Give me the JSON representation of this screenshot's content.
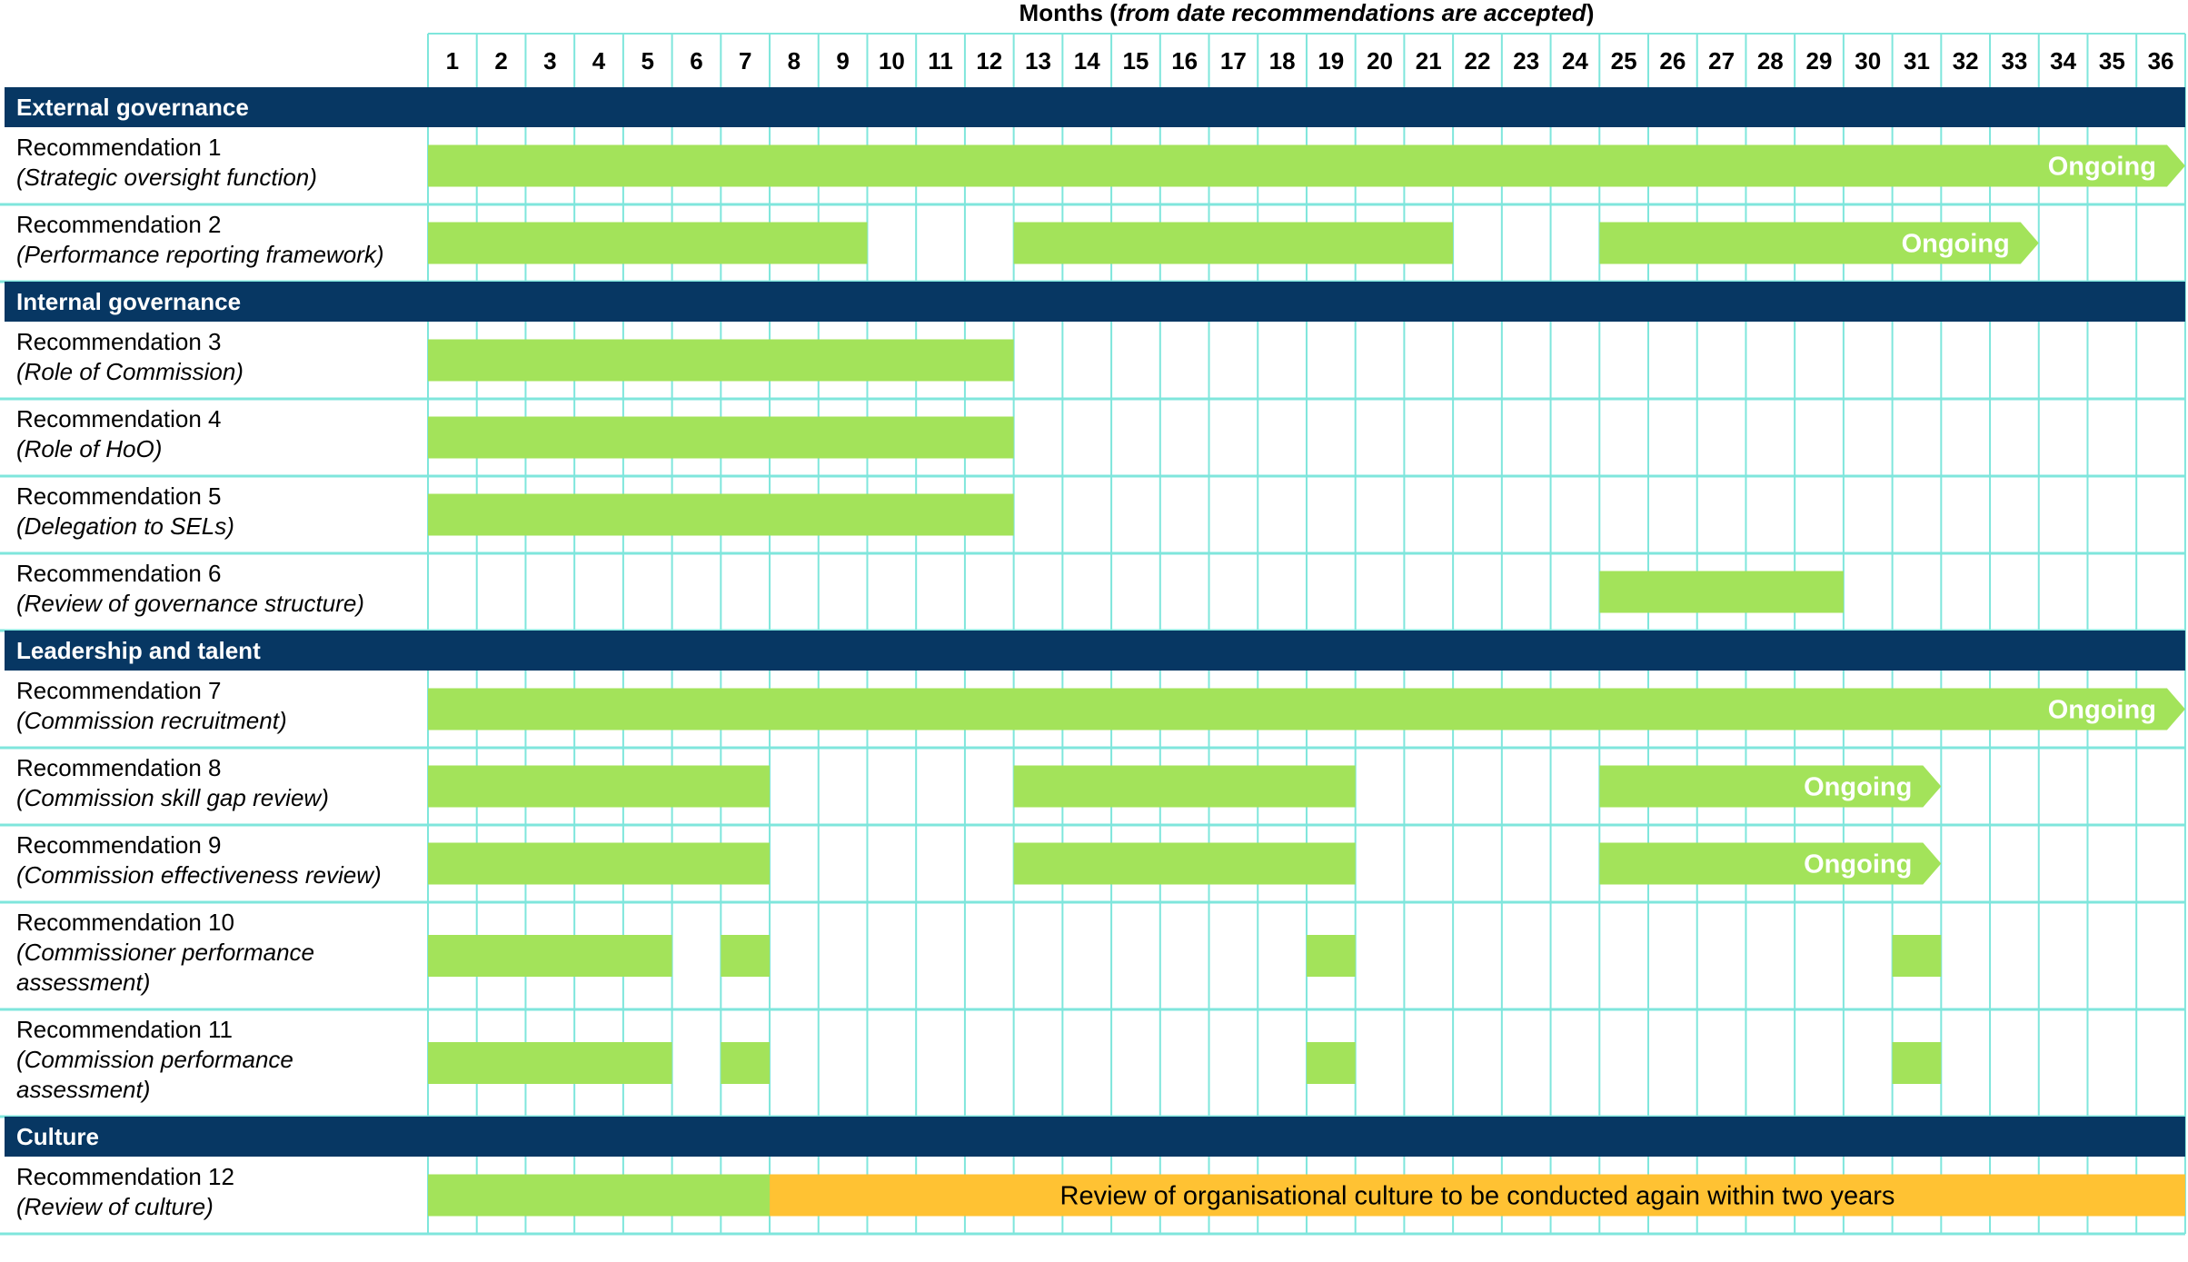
{
  "chart_data": {
    "type": "gantt",
    "header": {
      "title_main": "Months (",
      "title_italic": "from date recommendations are accepted",
      "title_end": ")"
    },
    "months": [
      1,
      2,
      3,
      4,
      5,
      6,
      7,
      8,
      9,
      10,
      11,
      12,
      13,
      14,
      15,
      16,
      17,
      18,
      19,
      20,
      21,
      22,
      23,
      24,
      25,
      26,
      27,
      28,
      29,
      30,
      31,
      32,
      33,
      34,
      35,
      36
    ],
    "colors": {
      "section_bg": "#073763",
      "section_text": "#ffffff",
      "bar_green": "#a3e35a",
      "bar_amber": "#ffc233",
      "grid": "#7fe6dc",
      "label_text": "#000000",
      "bar_label_text": "#ffffff"
    },
    "rows": [
      {
        "kind": "section",
        "label": "External governance"
      },
      {
        "kind": "rec",
        "title": "Recommendation 1",
        "subtitle": [
          "(Strategic oversight function)"
        ],
        "bars": [
          {
            "start": 1,
            "end": 36,
            "arrow": true,
            "label": "Ongoing"
          }
        ]
      },
      {
        "kind": "rec",
        "title": "Recommendation 2",
        "subtitle": [
          "(Performance reporting framework)"
        ],
        "bars": [
          {
            "start": 1,
            "end": 9
          },
          {
            "start": 13,
            "end": 21
          },
          {
            "start": 25,
            "end": 33,
            "arrow": true,
            "label": "Ongoing"
          }
        ]
      },
      {
        "kind": "section",
        "label": "Internal governance"
      },
      {
        "kind": "rec",
        "title": "Recommendation 3",
        "subtitle": [
          "(Role of Commission)"
        ],
        "bars": [
          {
            "start": 1,
            "end": 12
          }
        ]
      },
      {
        "kind": "rec",
        "title": "Recommendation 4",
        "subtitle": [
          "(Role of HoO)"
        ],
        "bars": [
          {
            "start": 1,
            "end": 12
          }
        ]
      },
      {
        "kind": "rec",
        "title": "Recommendation 5",
        "subtitle": [
          "(Delegation to SELs)"
        ],
        "bars": [
          {
            "start": 1,
            "end": 12
          }
        ]
      },
      {
        "kind": "rec",
        "title": "Recommendation 6",
        "subtitle": [
          "(Review of governance structure)"
        ],
        "bars": [
          {
            "start": 25,
            "end": 29
          }
        ]
      },
      {
        "kind": "section",
        "label": "Leadership and talent"
      },
      {
        "kind": "rec",
        "title": "Recommendation 7",
        "subtitle": [
          "(Commission recruitment)"
        ],
        "bars": [
          {
            "start": 1,
            "end": 36,
            "arrow": true,
            "label": "Ongoing"
          }
        ]
      },
      {
        "kind": "rec",
        "title": "Recommendation 8",
        "subtitle": [
          "(Commission skill gap review)"
        ],
        "bars": [
          {
            "start": 1,
            "end": 7
          },
          {
            "start": 13,
            "end": 19
          },
          {
            "start": 25,
            "end": 31,
            "arrow": true,
            "label": "Ongoing"
          }
        ]
      },
      {
        "kind": "rec",
        "title": "Recommendation 9",
        "subtitle": [
          "(Commission effectiveness review)"
        ],
        "bars": [
          {
            "start": 1,
            "end": 7
          },
          {
            "start": 13,
            "end": 19
          },
          {
            "start": 25,
            "end": 31,
            "arrow": true,
            "label": "Ongoing"
          }
        ]
      },
      {
        "kind": "rec",
        "title": "Recommendation 10",
        "subtitle": [
          "(Commissioner performance",
          "assessment)"
        ],
        "bars": [
          {
            "start": 1,
            "end": 5
          },
          {
            "start": 7,
            "end": 7
          },
          {
            "start": 19,
            "end": 19
          },
          {
            "start": 31,
            "end": 31
          }
        ]
      },
      {
        "kind": "rec",
        "title": "Recommendation 11",
        "subtitle": [
          "(Commission performance",
          "assessment)"
        ],
        "bars": [
          {
            "start": 1,
            "end": 5
          },
          {
            "start": 7,
            "end": 7
          },
          {
            "start": 19,
            "end": 19
          },
          {
            "start": 31,
            "end": 31
          }
        ]
      },
      {
        "kind": "section",
        "label": "Culture"
      },
      {
        "kind": "rec",
        "title": "Recommendation 12",
        "subtitle": [
          "(Review of culture)"
        ],
        "bars": [
          {
            "start": 1,
            "end": 7
          },
          {
            "start": 8,
            "end": 36,
            "color": "amber",
            "label": "Review of organisational culture to be conducted again within two years"
          }
        ]
      }
    ]
  }
}
